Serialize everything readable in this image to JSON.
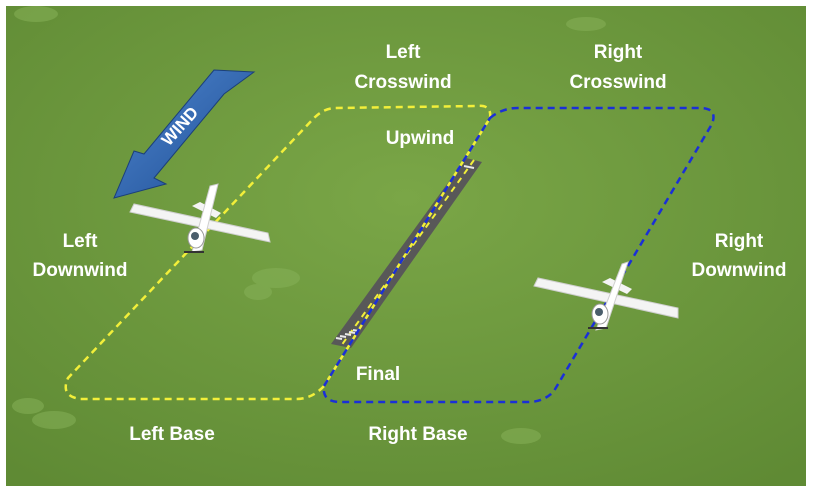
{
  "diagram": {
    "wind_label": "WIND",
    "legs": {
      "left_crosswind_1": "Left",
      "left_crosswind_2": "Crosswind",
      "right_crosswind_1": "Right",
      "right_crosswind_2": "Crosswind",
      "upwind": "Upwind",
      "left_downwind_1": "Left",
      "left_downwind_2": "Downwind",
      "right_downwind_1": "Right",
      "right_downwind_2": "Downwind",
      "final": "Final",
      "left_base": "Left Base",
      "right_base": "Right Base"
    },
    "colors": {
      "grass": "#6f9a3e",
      "left_pattern": "#f2ef3a",
      "right_pattern": "#1a2fd8",
      "runway": "#5a5a5a",
      "wind_arrow": "#2a5fa8"
    }
  }
}
